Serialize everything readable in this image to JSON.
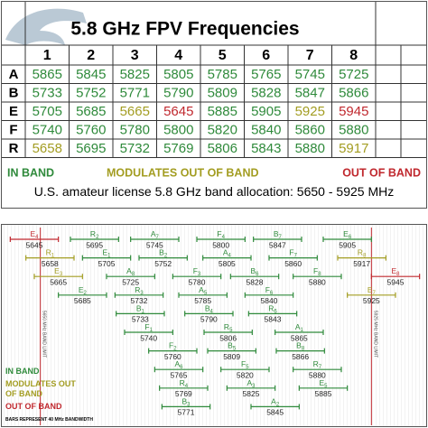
{
  "title": "5.8 GHz FPV Frequencies",
  "table": {
    "columns": [
      1,
      2,
      3,
      4,
      5,
      6,
      7,
      8
    ],
    "rows": [
      {
        "label": "A",
        "values": [
          5865,
          5845,
          5825,
          5805,
          5785,
          5765,
          5745,
          5725
        ]
      },
      {
        "label": "B",
        "values": [
          5733,
          5752,
          5771,
          5790,
          5809,
          5828,
          5847,
          5866
        ]
      },
      {
        "label": "E",
        "values": [
          5705,
          5685,
          5665,
          5645,
          5885,
          5905,
          5925,
          5945
        ]
      },
      {
        "label": "F",
        "values": [
          5740,
          5760,
          5780,
          5800,
          5820,
          5840,
          5860,
          5880
        ]
      },
      {
        "label": "R",
        "values": [
          5658,
          5695,
          5732,
          5769,
          5806,
          5843,
          5880,
          5917
        ]
      }
    ]
  },
  "legend": {
    "in_band": "IN BAND",
    "modulates": "MODULATES OUT OF BAND",
    "out_of_band": "OUT OF BAND"
  },
  "colors": {
    "in_band": "#2f8a3b",
    "modulates": "#a39d22",
    "out_of_band": "#c0282e"
  },
  "note": {
    "text": "U.S. amateur license 5.8 GHz band allocation:",
    "low": 5650,
    "separator": "-",
    "high": 5925,
    "unit": "MHz"
  },
  "diagram": {
    "limit_label": "MHz BAND LIMIT",
    "bandwidth_before": "BARS REPRESENT",
    "bandwidth": 40,
    "bandwidth_after": "MHz BANDWIDTH"
  }
}
